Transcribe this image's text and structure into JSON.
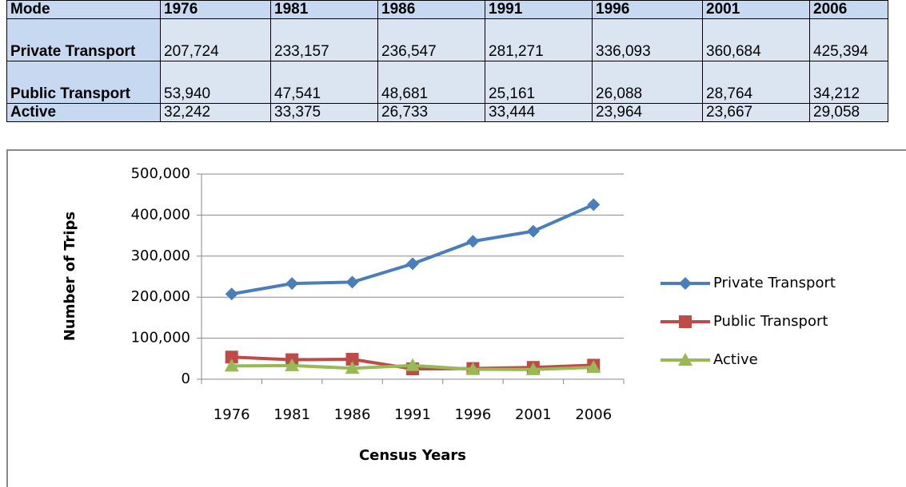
{
  "table": {
    "header": [
      "Mode",
      "1976",
      "1981",
      "1986",
      "1991",
      "1996",
      "2001",
      "2006"
    ],
    "rows": [
      [
        "Private Transport",
        "207,724",
        "233,157",
        "236,547",
        "281,271",
        "336,093",
        "360,684",
        "425,394"
      ],
      [
        "Public Transport",
        "53,940",
        "47,541",
        "48,681",
        "25,161",
        "26,088",
        "28,764",
        "34,212"
      ],
      [
        "Active",
        "32,242",
        "33,375",
        "26,733",
        "33,444",
        "23,964",
        "23,667",
        "29,058"
      ]
    ]
  },
  "chart_data": {
    "type": "line",
    "ylabel": "Number of Trips",
    "xlabel": "Census Years",
    "categories": [
      "1976",
      "1981",
      "1986",
      "1991",
      "1996",
      "2001",
      "2006"
    ],
    "series": [
      {
        "name": "Private Transport",
        "color": "#4a7ebb",
        "marker": "diamond",
        "values": [
          207724,
          233157,
          236547,
          281271,
          336093,
          360684,
          425394
        ]
      },
      {
        "name": "Public Transport",
        "color": "#be4b48",
        "marker": "square",
        "values": [
          53940,
          47541,
          48681,
          25161,
          26088,
          28764,
          34212
        ]
      },
      {
        "name": "Active",
        "color": "#98b954",
        "marker": "triangle",
        "values": [
          32242,
          33375,
          26733,
          33444,
          23964,
          23667,
          29058
        ]
      }
    ],
    "ylim": [
      0,
      500000
    ],
    "yticks": [
      0,
      {
        "value": 100000,
        "label": "100,000"
      },
      {
        "value": 200000,
        "label": "200,000"
      },
      {
        "value": 300000,
        "label": "300,000"
      },
      {
        "value": 400000,
        "label": "400,000"
      },
      {
        "value": 500000,
        "label": "500,000"
      }
    ],
    "grid": true,
    "legend": "right"
  }
}
